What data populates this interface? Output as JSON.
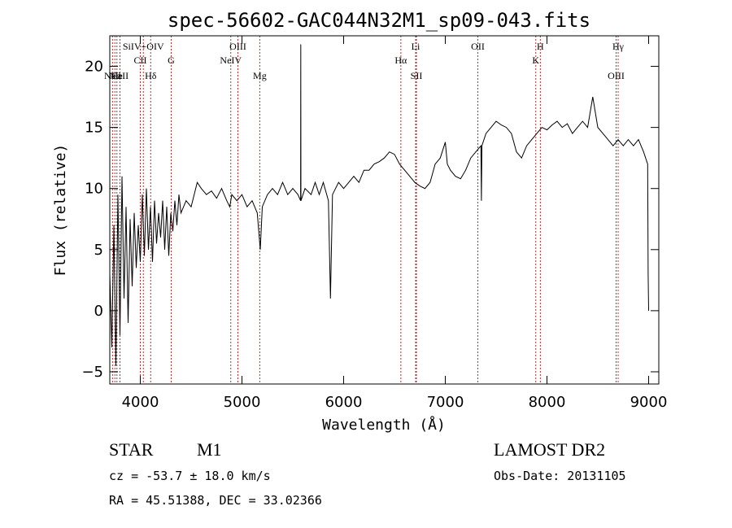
{
  "chart_data": {
    "type": "line",
    "title": "spec-56602-GAC044N32M1_sp09-043.fits",
    "xlabel": "Wavelength (Å)",
    "ylabel": "Flux (relative)",
    "xlim": [
      3700,
      9100
    ],
    "ylim": [
      -6,
      22.5
    ],
    "xticks": [
      4000,
      5000,
      6000,
      7000,
      8000,
      9000
    ],
    "yticks": [
      -5,
      0,
      5,
      10,
      15,
      20
    ],
    "grid": false,
    "color": "#000000",
    "line_marker_color": "#b03030",
    "series": [
      {
        "points": [
          [
            3700,
            3.0
          ],
          [
            3720,
            -3.0
          ],
          [
            3740,
            7.0
          ],
          [
            3760,
            -4.5
          ],
          [
            3780,
            9.5
          ],
          [
            3800,
            -2.0
          ],
          [
            3820,
            11.0
          ],
          [
            3840,
            1.0
          ],
          [
            3860,
            8.5
          ],
          [
            3880,
            -1.0
          ],
          [
            3900,
            7.5
          ],
          [
            3920,
            2.0
          ],
          [
            3940,
            8.0
          ],
          [
            3960,
            3.5
          ],
          [
            3980,
            7.0
          ],
          [
            4000,
            4.0
          ],
          [
            4020,
            9.5
          ],
          [
            4040,
            4.5
          ],
          [
            4060,
            10.0
          ],
          [
            4080,
            5.0
          ],
          [
            4100,
            8.5
          ],
          [
            4120,
            4.0
          ],
          [
            4140,
            9.0
          ],
          [
            4160,
            5.5
          ],
          [
            4180,
            8.0
          ],
          [
            4200,
            6.0
          ],
          [
            4220,
            9.0
          ],
          [
            4240,
            5.0
          ],
          [
            4260,
            8.5
          ],
          [
            4280,
            4.5
          ],
          [
            4300,
            8.0
          ],
          [
            4320,
            6.5
          ],
          [
            4340,
            9.0
          ],
          [
            4360,
            7.0
          ],
          [
            4380,
            9.5
          ],
          [
            4400,
            8.0
          ],
          [
            4450,
            9.0
          ],
          [
            4500,
            8.5
          ],
          [
            4560,
            10.5
          ],
          [
            4600,
            10.0
          ],
          [
            4650,
            9.5
          ],
          [
            4700,
            9.8
          ],
          [
            4750,
            9.2
          ],
          [
            4800,
            10.0
          ],
          [
            4850,
            9.0
          ],
          [
            4880,
            8.5
          ],
          [
            4900,
            9.5
          ],
          [
            4950,
            9.0
          ],
          [
            5000,
            9.5
          ],
          [
            5050,
            8.5
          ],
          [
            5100,
            9.0
          ],
          [
            5150,
            8.0
          ],
          [
            5180,
            5.0
          ],
          [
            5200,
            8.5
          ],
          [
            5250,
            9.5
          ],
          [
            5300,
            10.0
          ],
          [
            5350,
            9.5
          ],
          [
            5400,
            10.5
          ],
          [
            5450,
            9.5
          ],
          [
            5500,
            10.0
          ],
          [
            5550,
            9.5
          ],
          [
            5577,
            9.0
          ],
          [
            5578,
            21.8
          ],
          [
            5580,
            9.0
          ],
          [
            5620,
            10.0
          ],
          [
            5680,
            9.5
          ],
          [
            5720,
            10.5
          ],
          [
            5760,
            9.5
          ],
          [
            5800,
            10.5
          ],
          [
            5850,
            9.0
          ],
          [
            5870,
            1.0
          ],
          [
            5890,
            9.5
          ],
          [
            5950,
            10.5
          ],
          [
            6000,
            10.0
          ],
          [
            6050,
            10.5
          ],
          [
            6100,
            11.0
          ],
          [
            6150,
            10.5
          ],
          [
            6200,
            11.5
          ],
          [
            6250,
            11.5
          ],
          [
            6300,
            12.0
          ],
          [
            6350,
            12.2
          ],
          [
            6400,
            12.5
          ],
          [
            6450,
            13.0
          ],
          [
            6500,
            12.8
          ],
          [
            6550,
            12.0
          ],
          [
            6600,
            11.5
          ],
          [
            6650,
            11.0
          ],
          [
            6700,
            10.5
          ],
          [
            6750,
            10.2
          ],
          [
            6800,
            10.0
          ],
          [
            6850,
            10.5
          ],
          [
            6900,
            12.0
          ],
          [
            6950,
            12.5
          ],
          [
            7000,
            13.8
          ],
          [
            7020,
            12.0
          ],
          [
            7050,
            11.5
          ],
          [
            7100,
            11.0
          ],
          [
            7150,
            10.8
          ],
          [
            7200,
            11.5
          ],
          [
            7250,
            12.5
          ],
          [
            7300,
            13.0
          ],
          [
            7350,
            13.5
          ],
          [
            7355,
            9.0
          ],
          [
            7360,
            13.5
          ],
          [
            7400,
            14.5
          ],
          [
            7450,
            15.0
          ],
          [
            7500,
            15.5
          ],
          [
            7550,
            15.2
          ],
          [
            7600,
            15.0
          ],
          [
            7650,
            14.5
          ],
          [
            7700,
            13.0
          ],
          [
            7750,
            12.5
          ],
          [
            7800,
            13.5
          ],
          [
            7850,
            14.0
          ],
          [
            7900,
            14.5
          ],
          [
            7950,
            15.0
          ],
          [
            8000,
            14.8
          ],
          [
            8050,
            15.2
          ],
          [
            8100,
            15.5
          ],
          [
            8150,
            15.0
          ],
          [
            8200,
            15.3
          ],
          [
            8250,
            14.5
          ],
          [
            8300,
            15.0
          ],
          [
            8350,
            15.5
          ],
          [
            8400,
            15.0
          ],
          [
            8450,
            17.5
          ],
          [
            8500,
            15.0
          ],
          [
            8550,
            14.5
          ],
          [
            8600,
            14.0
          ],
          [
            8650,
            13.5
          ],
          [
            8700,
            14.0
          ],
          [
            8750,
            13.5
          ],
          [
            8800,
            14.0
          ],
          [
            8850,
            13.5
          ],
          [
            8900,
            14.0
          ],
          [
            8950,
            13.0
          ],
          [
            8990,
            12.0
          ],
          [
            8995,
            3.0
          ],
          [
            9000,
            0.0
          ]
        ]
      }
    ],
    "lines": [
      {
        "label": "Nell",
        "x": 3727,
        "row": 0
      },
      {
        "label": "Ne",
        "x": 3750,
        "row": 0
      },
      {
        "label": "He",
        "x": 3770,
        "row": 0
      },
      {
        "label": "CaII",
        "x": 3800,
        "row": 0
      },
      {
        "label": "SiIV+OIV",
        "x": 4030,
        "row": 1
      },
      {
        "label": "CII",
        "x": 4000,
        "row": 2
      },
      {
        "label": "Hδ",
        "x": 4102,
        "row": 3
      },
      {
        "label": "G",
        "x": 4304,
        "row": 2
      },
      {
        "label": "OIII",
        "x": 4960,
        "row": 1
      },
      {
        "label": "NeIV",
        "x": 4890,
        "row": 2
      },
      {
        "label": "Mg",
        "x": 5175,
        "row": 3
      },
      {
        "label": "Li",
        "x": 6708,
        "row": 1
      },
      {
        "label": "Hα",
        "x": 6563,
        "row": 2
      },
      {
        "label": "SII",
        "x": 6716,
        "row": 3
      },
      {
        "label": "OII",
        "x": 7320,
        "row": 1
      },
      {
        "label": "H",
        "x": 7935,
        "row": 1
      },
      {
        "label": "K",
        "x": 7890,
        "row": 2
      },
      {
        "label": "Hγ",
        "x": 8700,
        "row": 1
      },
      {
        "label": "OIII",
        "x": 8680,
        "row": 3
      }
    ]
  },
  "info": {
    "class": "STAR",
    "subclass": "M1",
    "survey": "LAMOST DR2",
    "cz": "cz = -53.7 ± 18.0 km/s",
    "obs_date": "Obs-Date: 20131105",
    "radec": "RA =  45.51388, DEC =  33.02366"
  }
}
